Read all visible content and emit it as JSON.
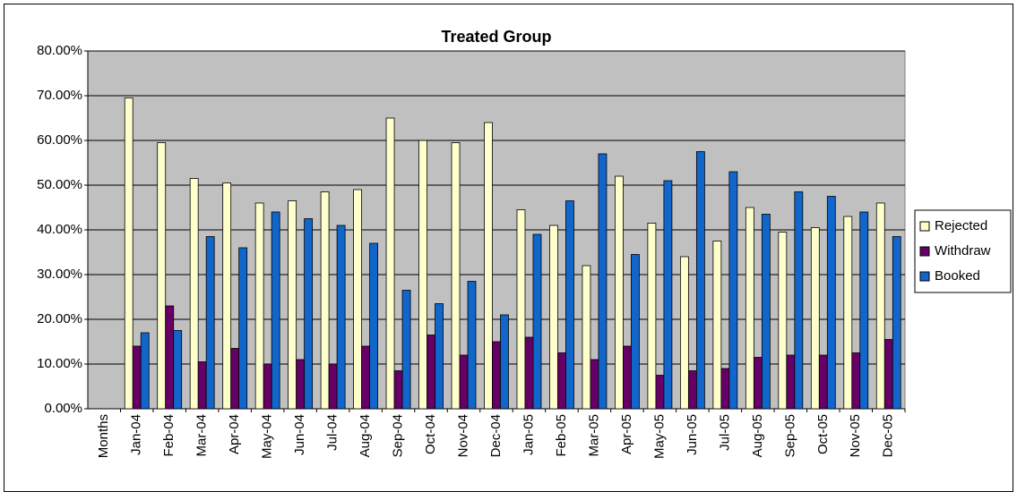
{
  "chart_data": {
    "type": "bar",
    "title": "Treated Group",
    "categories": [
      "Months",
      "Jan-04",
      "Feb-04",
      "Mar-04",
      "Apr-04",
      "May-04",
      "Jun-04",
      "Jul-04",
      "Aug-04",
      "Sep-04",
      "Oct-04",
      "Nov-04",
      "Dec-04",
      "Jan-05",
      "Feb-05",
      "Mar-05",
      "Apr-05",
      "May-05",
      "Jun-05",
      "Jul-05",
      "Aug-05",
      "Sep-05",
      "Oct-05",
      "Nov-05",
      "Dec-05"
    ],
    "series": [
      {
        "name": "Rejected",
        "color": "#ffffcc",
        "values": [
          null,
          69.5,
          59.5,
          51.5,
          50.5,
          46,
          46.5,
          48.5,
          49,
          65,
          60,
          59.5,
          64,
          44.5,
          41,
          32,
          52,
          41.5,
          34,
          37.5,
          45,
          39.5,
          40.5,
          43,
          46
        ]
      },
      {
        "name": "Withdraw",
        "color": "#660066",
        "values": [
          null,
          14,
          23,
          10.5,
          13.5,
          10,
          11,
          10,
          14,
          8.5,
          16.5,
          12,
          15,
          16,
          12.5,
          11,
          14,
          7.5,
          8.5,
          9,
          11.5,
          12,
          12,
          12.5,
          15.5
        ]
      },
      {
        "name": "Booked",
        "color": "#1166cc",
        "values": [
          null,
          17,
          17.5,
          38.5,
          36,
          44,
          42.5,
          41,
          37,
          26.5,
          23.5,
          28.5,
          21,
          39,
          46.5,
          57,
          34.5,
          51,
          57.5,
          53,
          43.5,
          48.5,
          47.5,
          44,
          38.5
        ]
      }
    ],
    "ylim": [
      0,
      80
    ],
    "yticks": [
      {
        "value": 0,
        "label": "0.00%"
      },
      {
        "value": 10,
        "label": "10.00%"
      },
      {
        "value": 20,
        "label": "20.00%"
      },
      {
        "value": 30,
        "label": "30.00%"
      },
      {
        "value": 40,
        "label": "40.00%"
      },
      {
        "value": 50,
        "label": "50.00%"
      },
      {
        "value": 60,
        "label": "60.00%"
      },
      {
        "value": 70,
        "label": "70.00%"
      },
      {
        "value": 80,
        "label": "80.00%"
      }
    ],
    "grid": true,
    "legend": "right"
  }
}
